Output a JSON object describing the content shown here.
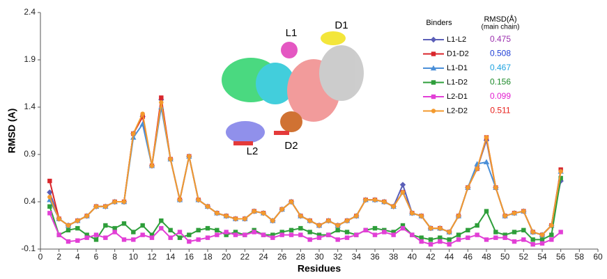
{
  "chart_data": {
    "type": "line",
    "xlabel": "Residues",
    "ylabel": "RMSD (A)",
    "xlim": [
      0,
      60
    ],
    "xticks": [
      0,
      2,
      4,
      6,
      8,
      10,
      12,
      14,
      16,
      18,
      20,
      22,
      24,
      26,
      28,
      30,
      32,
      34,
      36,
      38,
      40,
      42,
      44,
      46,
      48,
      50,
      52,
      54,
      56,
      58,
      60
    ],
    "ylim": [
      -0.1,
      2.4
    ],
    "yticks": [
      -0.1,
      0.4,
      0.9,
      1.4,
      1.9,
      2.4
    ],
    "legend_header": {
      "binders": "Binders",
      "rmsd": "RMSD(Å)",
      "rmsd_note": "(main chain)"
    },
    "annotations": [
      "L1",
      "D1",
      "L2",
      "D2"
    ],
    "x": [
      1,
      2,
      3,
      4,
      5,
      6,
      7,
      8,
      9,
      10,
      11,
      12,
      13,
      14,
      15,
      16,
      17,
      18,
      19,
      20,
      21,
      22,
      23,
      24,
      25,
      26,
      27,
      28,
      29,
      30,
      31,
      32,
      33,
      34,
      35,
      36,
      37,
      38,
      39,
      40,
      41,
      42,
      43,
      44,
      45,
      46,
      47,
      48,
      49,
      50,
      51,
      52,
      53,
      54,
      55,
      56
    ],
    "series": [
      {
        "name": "L1-L2",
        "color": "#5b5fb8",
        "marker": "diamond",
        "rmsd": 0.475,
        "rmsd_color": "#9b2fae",
        "values": [
          0.5,
          0.22,
          0.15,
          0.2,
          0.25,
          0.35,
          0.35,
          0.4,
          0.4,
          1.12,
          1.3,
          0.78,
          1.48,
          0.85,
          0.42,
          0.88,
          0.42,
          0.35,
          0.28,
          0.25,
          0.22,
          0.22,
          0.3,
          0.28,
          0.2,
          0.32,
          0.4,
          0.25,
          0.2,
          0.15,
          0.2,
          0.15,
          0.2,
          0.25,
          0.42,
          0.42,
          0.4,
          0.35,
          0.58,
          0.28,
          0.25,
          0.12,
          0.12,
          0.08,
          0.25,
          0.55,
          0.75,
          1.05,
          0.55,
          0.25,
          0.28,
          0.3,
          0.08,
          0.05,
          0.15,
          0.62
        ]
      },
      {
        "name": "D1-D2",
        "color": "#d9262b",
        "marker": "square",
        "rmsd": 0.508,
        "rmsd_color": "#1f3fd6",
        "values": [
          0.62,
          0.22,
          0.15,
          0.2,
          0.25,
          0.35,
          0.35,
          0.4,
          0.4,
          1.12,
          1.3,
          0.78,
          1.5,
          0.85,
          0.42,
          0.88,
          0.42,
          0.35,
          0.28,
          0.25,
          0.22,
          0.22,
          0.3,
          0.28,
          0.2,
          0.32,
          0.4,
          0.25,
          0.2,
          0.15,
          0.2,
          0.15,
          0.2,
          0.25,
          0.42,
          0.42,
          0.4,
          0.35,
          0.5,
          0.28,
          0.25,
          0.12,
          0.12,
          0.08,
          0.25,
          0.55,
          0.75,
          1.08,
          0.55,
          0.25,
          0.28,
          0.3,
          0.08,
          0.05,
          0.15,
          0.74
        ]
      },
      {
        "name": "L1-D1",
        "color": "#4a8fd8",
        "marker": "triangle",
        "rmsd": 0.467,
        "rmsd_color": "#1fa3e0",
        "values": [
          0.42,
          0.22,
          0.15,
          0.2,
          0.25,
          0.35,
          0.35,
          0.4,
          0.4,
          1.08,
          1.22,
          0.78,
          1.4,
          0.85,
          0.42,
          0.88,
          0.42,
          0.35,
          0.28,
          0.25,
          0.22,
          0.22,
          0.3,
          0.28,
          0.2,
          0.32,
          0.4,
          0.25,
          0.2,
          0.15,
          0.2,
          0.15,
          0.2,
          0.25,
          0.42,
          0.42,
          0.4,
          0.35,
          0.5,
          0.28,
          0.25,
          0.12,
          0.12,
          0.08,
          0.25,
          0.55,
          0.8,
          0.82,
          0.55,
          0.25,
          0.28,
          0.3,
          0.08,
          0.05,
          0.15,
          0.72
        ]
      },
      {
        "name": "L1-D2",
        "color": "#2e9e3a",
        "marker": "square",
        "rmsd": 0.156,
        "rmsd_color": "#1e8a2a",
        "values": [
          0.35,
          0.05,
          0.1,
          0.12,
          0.05,
          0.0,
          0.15,
          0.12,
          0.17,
          0.08,
          0.15,
          0.05,
          0.2,
          0.1,
          0.02,
          0.05,
          0.1,
          0.12,
          0.1,
          0.05,
          0.08,
          0.05,
          0.1,
          0.05,
          0.05,
          0.08,
          0.1,
          0.12,
          0.08,
          0.05,
          0.05,
          0.1,
          0.08,
          0.05,
          0.1,
          0.12,
          0.1,
          0.08,
          0.15,
          0.05,
          0.02,
          0.0,
          0.02,
          0.0,
          0.05,
          0.1,
          0.15,
          0.3,
          0.08,
          0.05,
          0.08,
          0.1,
          0.0,
          0.0,
          0.05,
          0.65
        ]
      },
      {
        "name": "L2-D1",
        "color": "#e23fd6",
        "marker": "square",
        "rmsd": 0.099,
        "rmsd_color": "#e21fd0",
        "values": [
          0.28,
          0.05,
          -0.02,
          -0.01,
          0.02,
          0.05,
          0.02,
          0.08,
          0.0,
          0.0,
          0.05,
          0.02,
          0.12,
          0.02,
          0.08,
          -0.02,
          0.0,
          0.02,
          0.05,
          0.08,
          0.05,
          0.05,
          0.08,
          0.05,
          0.02,
          0.05,
          0.05,
          0.05,
          0.0,
          0.02,
          0.05,
          0.0,
          0.02,
          0.05,
          0.1,
          0.05,
          0.08,
          0.05,
          0.12,
          0.05,
          -0.02,
          -0.05,
          -0.02,
          -0.05,
          0.0,
          0.02,
          0.05,
          0.0,
          0.02,
          0.02,
          -0.02,
          0.0,
          -0.05,
          -0.04,
          0.0,
          0.08
        ]
      },
      {
        "name": "L2-D2",
        "color": "#f39a2e",
        "marker": "circle",
        "rmsd": 0.511,
        "rmsd_color": "#e8201c",
        "values": [
          0.45,
          0.22,
          0.15,
          0.2,
          0.25,
          0.35,
          0.35,
          0.4,
          0.4,
          1.12,
          1.33,
          0.78,
          1.45,
          0.85,
          0.42,
          0.88,
          0.42,
          0.35,
          0.28,
          0.25,
          0.22,
          0.22,
          0.3,
          0.28,
          0.2,
          0.32,
          0.4,
          0.25,
          0.2,
          0.15,
          0.2,
          0.15,
          0.2,
          0.25,
          0.42,
          0.42,
          0.4,
          0.35,
          0.5,
          0.28,
          0.25,
          0.12,
          0.12,
          0.08,
          0.25,
          0.55,
          0.75,
          1.08,
          0.55,
          0.25,
          0.28,
          0.3,
          0.08,
          0.05,
          0.15,
          0.72
        ]
      }
    ]
  }
}
